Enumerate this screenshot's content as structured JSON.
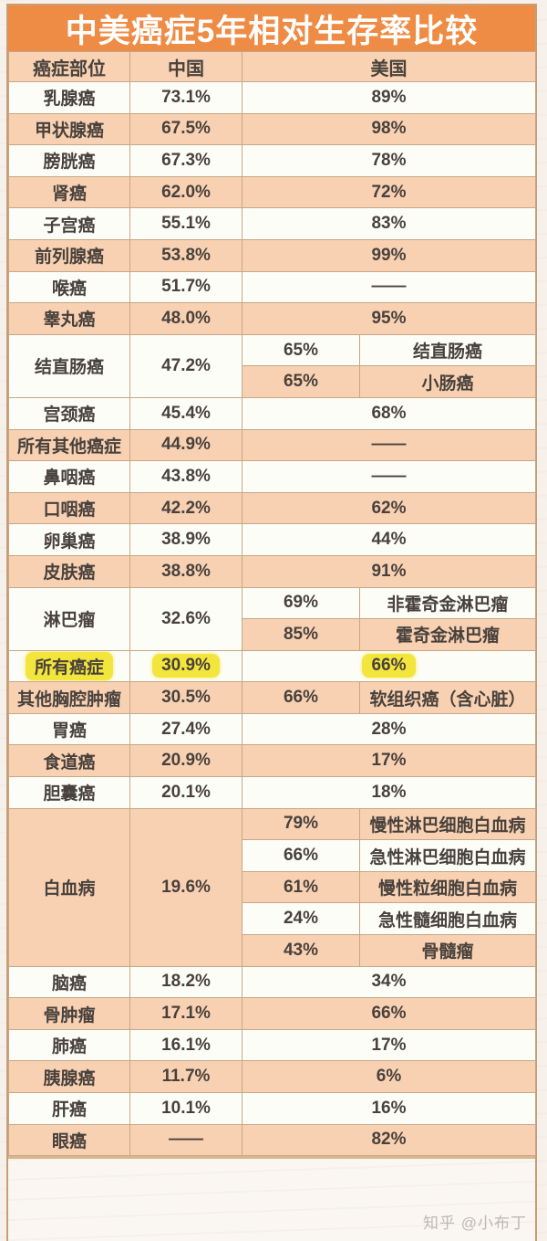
{
  "chart_data": {
    "type": "table",
    "title": "中美癌症5年相对生存率比较",
    "columns": [
      "癌症部位",
      "中国",
      "美国"
    ],
    "rows": [
      {
        "site": "乳腺癌",
        "china": "73.1%",
        "usa": "89%",
        "bg": "w"
      },
      {
        "site": "甲状腺癌",
        "china": "67.5%",
        "usa": "98%",
        "bg": "p"
      },
      {
        "site": "膀胱癌",
        "china": "67.3%",
        "usa": "78%",
        "bg": "w"
      },
      {
        "site": "肾癌",
        "china": "62.0%",
        "usa": "72%",
        "bg": "p"
      },
      {
        "site": "子宫癌",
        "china": "55.1%",
        "usa": "83%",
        "bg": "w"
      },
      {
        "site": "前列腺癌",
        "china": "53.8%",
        "usa": "99%",
        "bg": "p"
      },
      {
        "site": "喉癌",
        "china": "51.7%",
        "usa": "——",
        "bg": "w"
      },
      {
        "site": "睾丸癌",
        "china": "48.0%",
        "usa": "95%",
        "bg": "p"
      },
      {
        "site": "结直肠癌",
        "china": "47.2%",
        "bg": "w",
        "sub": [
          {
            "pct": "65%",
            "label": "结直肠癌",
            "bg": "w"
          },
          {
            "pct": "65%",
            "label": "小肠癌",
            "bg": "p"
          }
        ]
      },
      {
        "site": "宫颈癌",
        "china": "45.4%",
        "usa": "68%",
        "bg": "w"
      },
      {
        "site": "所有其他癌症",
        "china": "44.9%",
        "usa": "——",
        "bg": "p"
      },
      {
        "site": "鼻咽癌",
        "china": "43.8%",
        "usa": "——",
        "bg": "w"
      },
      {
        "site": "口咽癌",
        "china": "42.2%",
        "usa": "62%",
        "bg": "p"
      },
      {
        "site": "卵巢癌",
        "china": "38.9%",
        "usa": "44%",
        "bg": "w"
      },
      {
        "site": "皮肤癌",
        "china": "38.8%",
        "usa": "91%",
        "bg": "p"
      },
      {
        "site": "淋巴瘤",
        "china": "32.6%",
        "bg": "w",
        "sub": [
          {
            "pct": "69%",
            "label": "非霍奇金淋巴瘤",
            "bg": "w"
          },
          {
            "pct": "85%",
            "label": "霍奇金淋巴瘤",
            "bg": "p"
          }
        ]
      },
      {
        "site": "所有癌症",
        "china": "30.9%",
        "usa": "66%",
        "bg": "w",
        "highlight": true
      },
      {
        "site": "其他胸腔肿瘤",
        "china": "30.5%",
        "bg": "p",
        "sub": [
          {
            "pct": "66%",
            "label": "软组织癌（含心脏）",
            "bg": "p"
          }
        ]
      },
      {
        "site": "胃癌",
        "china": "27.4%",
        "usa": "28%",
        "bg": "w"
      },
      {
        "site": "食道癌",
        "china": "20.9%",
        "usa": "17%",
        "bg": "p"
      },
      {
        "site": "胆囊癌",
        "china": "20.1%",
        "usa": "18%",
        "bg": "w"
      },
      {
        "site": "白血病",
        "china": "19.6%",
        "bg": "p",
        "sub": [
          {
            "pct": "79%",
            "label": "慢性淋巴细胞白血病",
            "bg": "p"
          },
          {
            "pct": "66%",
            "label": "急性淋巴细胞白血病",
            "bg": "w"
          },
          {
            "pct": "61%",
            "label": "慢性粒细胞白血病",
            "bg": "p"
          },
          {
            "pct": "24%",
            "label": "急性髓细胞白血病",
            "bg": "w"
          },
          {
            "pct": "43%",
            "label": "骨髓瘤",
            "bg": "p"
          }
        ]
      },
      {
        "site": "脑癌",
        "china": "18.2%",
        "usa": "34%",
        "bg": "w"
      },
      {
        "site": "骨肿瘤",
        "china": "17.1%",
        "usa": "66%",
        "bg": "p"
      },
      {
        "site": "肺癌",
        "china": "16.1%",
        "usa": "17%",
        "bg": "w"
      },
      {
        "site": "胰腺癌",
        "china": "11.7%",
        "usa": "6%",
        "bg": "p"
      },
      {
        "site": "肝癌",
        "china": "10.1%",
        "usa": "16%",
        "bg": "w"
      },
      {
        "site": "眼癌",
        "china": "——",
        "usa": "82%",
        "bg": "p"
      }
    ]
  },
  "watermark": "知乎 @小布丁",
  "colors": {
    "title_bg": "#EE8B44",
    "title_text": "#FFFFFF",
    "row_peach": "#F8D1B2",
    "row_white": "#FDFDF8",
    "grid_line": "#C6A786",
    "outer_border": "#C79E77",
    "highlight_yellow": "#F2E53C",
    "text_dark": "#48413C",
    "watermark_gray": "#BDB8B1"
  }
}
